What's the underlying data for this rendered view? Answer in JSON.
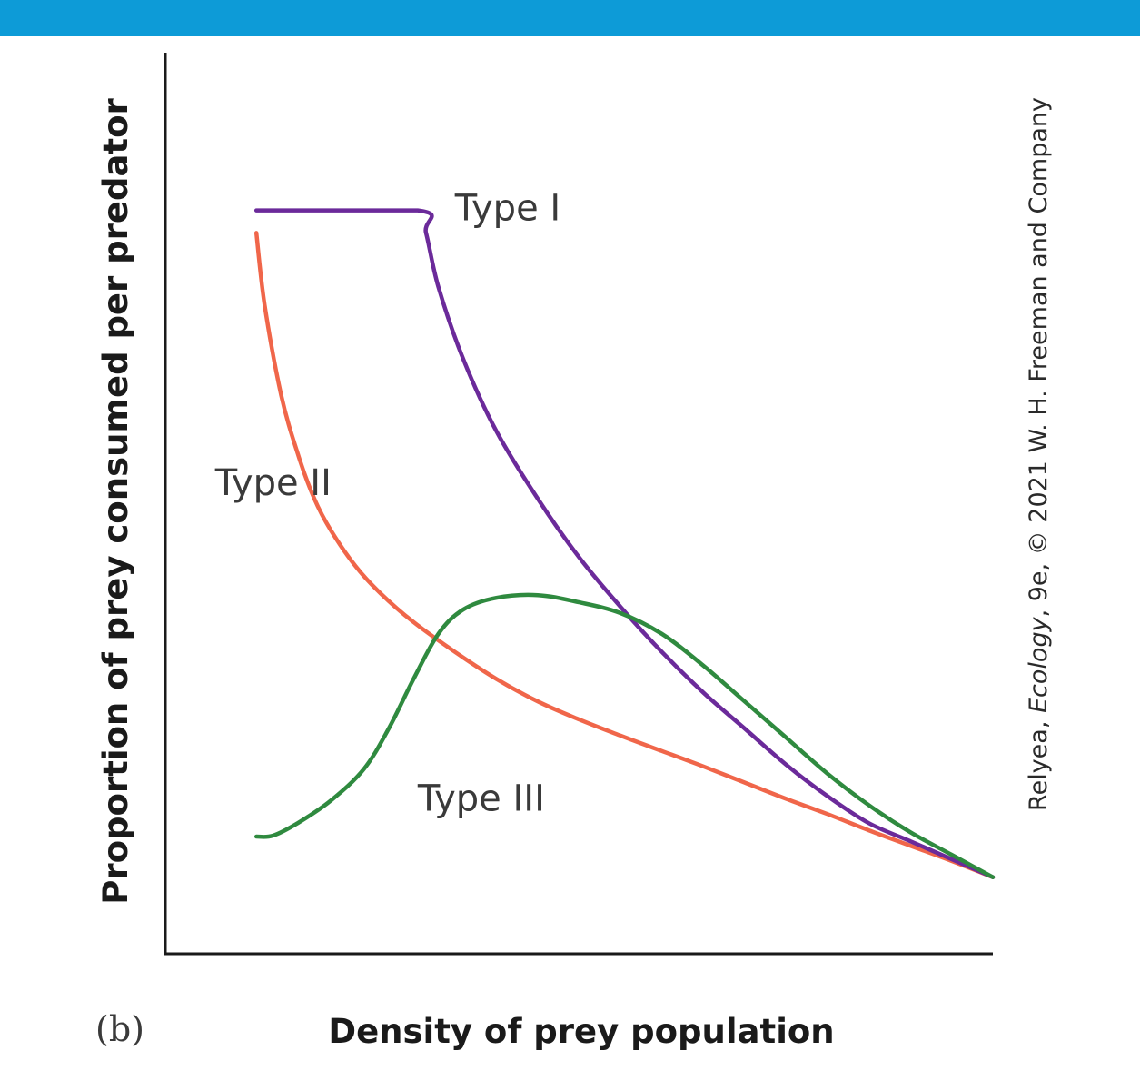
{
  "colors": {
    "top_band": "#0d9bd7",
    "axis": "#1a1a1a",
    "type_i": "#6b2a9a",
    "type_ii": "#f0664a",
    "type_iii": "#2f8a3f"
  },
  "panel_label": "(b)",
  "credit": {
    "before": "Relyea, ",
    "title": "Ecology",
    "after": ", 9e, © 2021 W. H. Freeman and Company"
  },
  "chart_data": {
    "type": "line",
    "xlabel": "Density of prey population",
    "ylabel": "Proportion of prey consumed per predator",
    "grid": false,
    "legend": "none",
    "xlim": [
      0,
      100
    ],
    "ylim": [
      0,
      100
    ],
    "series": [
      {
        "name": "Type I",
        "color_key": "type_i",
        "x": [
          11,
          30.5,
          31.5,
          33,
          36,
          40,
          45,
          50,
          55,
          60,
          65,
          70,
          75,
          80,
          85,
          90,
          95,
          100
        ],
        "y": [
          82.5,
          82.5,
          80,
          74,
          66,
          58,
          50.5,
          44,
          38.5,
          33.5,
          29,
          25,
          21,
          17.5,
          14.5,
          12.5,
          10.5,
          8.5
        ]
      },
      {
        "name": "Type II",
        "color_key": "type_ii",
        "x": [
          11,
          12,
          14,
          16,
          18,
          20,
          23,
          26,
          30,
          35,
          40,
          45,
          50,
          55,
          60,
          65,
          70,
          75,
          80,
          85,
          90,
          95,
          100
        ],
        "y": [
          80,
          72,
          62,
          55.5,
          50.5,
          47,
          43,
          40,
          36.8,
          33.5,
          30.5,
          28,
          26,
          24.2,
          22.5,
          20.8,
          19,
          17.2,
          15.5,
          13.7,
          12,
          10.3,
          8.5
        ]
      },
      {
        "name": "Type III",
        "color_key": "type_iii",
        "x": [
          11,
          13,
          16,
          20,
          24,
          27,
          30,
          33,
          36,
          40,
          45,
          50,
          55,
          60,
          65,
          70,
          75,
          80,
          85,
          90,
          95,
          100
        ],
        "y": [
          13,
          13.1,
          14.5,
          17,
          20.5,
          25,
          30.5,
          35.5,
          38.2,
          39.5,
          39.8,
          39,
          37.8,
          35.5,
          32,
          28,
          24,
          20,
          16.5,
          13.5,
          11,
          8.5
        ]
      }
    ],
    "labels": [
      {
        "text": "Type I",
        "series": "Type I",
        "x": 35,
        "y": 82.5
      },
      {
        "text": "Type II",
        "series": "Type II",
        "x": 6,
        "y": 52
      },
      {
        "text": "Type III",
        "series": "Type III",
        "x": 30.5,
        "y": 17
      }
    ]
  }
}
